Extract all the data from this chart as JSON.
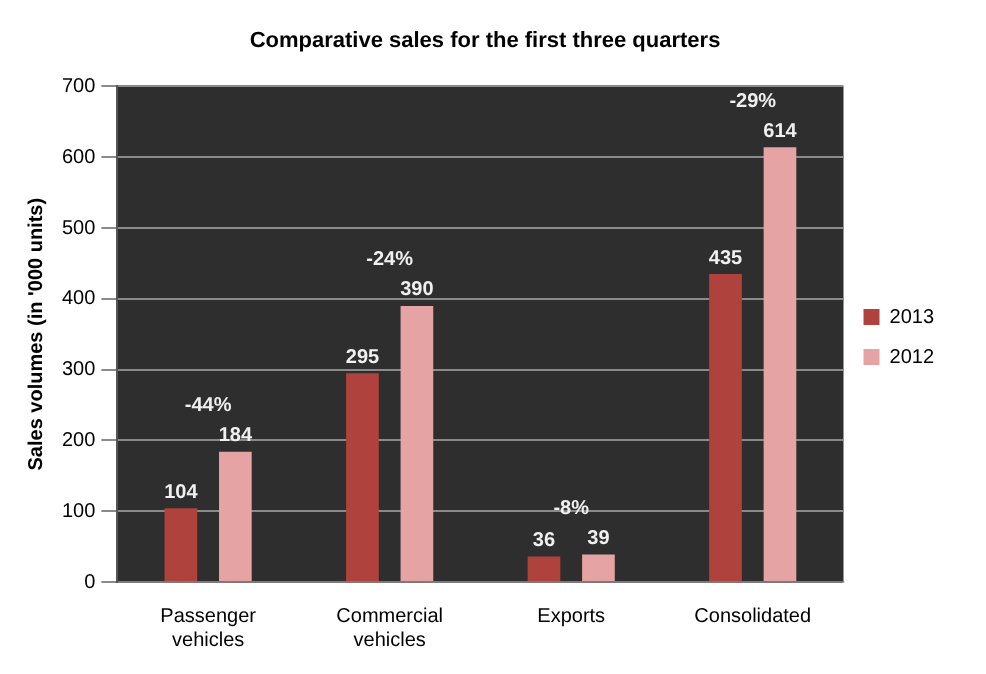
{
  "chart_data": {
    "type": "bar",
    "title": "Comparative sales for the first three quarters",
    "ylabel": "Sales volumes (in '000 units)",
    "categories": [
      "Passenger vehicles",
      "Commercial vehicles",
      "Exports",
      "Consolidated"
    ],
    "series": [
      {
        "name": "2013",
        "color": "#b0423e",
        "values": [
          104,
          295,
          36,
          435
        ]
      },
      {
        "name": "2012",
        "color": "#e6a3a3",
        "values": [
          184,
          390,
          39,
          614
        ]
      }
    ],
    "ylim": [
      0,
      700
    ],
    "yticks": [
      0,
      100,
      200,
      300,
      400,
      500,
      600,
      700
    ],
    "grid": "y",
    "legend": "right",
    "data_labels": true,
    "annotations": [
      "-44%",
      "-24%",
      "-8%",
      "-29%"
    ]
  }
}
